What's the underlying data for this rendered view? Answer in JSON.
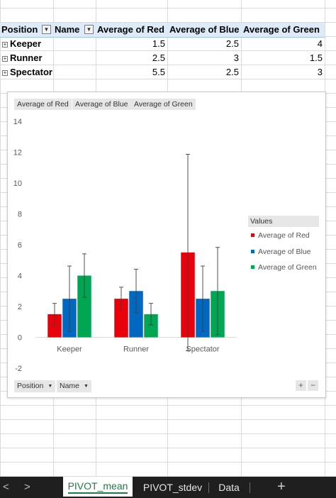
{
  "pivot": {
    "headers": {
      "position": "Position",
      "name": "Name",
      "red": "Average of Red",
      "blue": "Average of Blue",
      "green": "Average of Green"
    },
    "rows": [
      {
        "label": "Keeper",
        "red": "1.5",
        "blue": "2.5",
        "green": "4"
      },
      {
        "label": "Runner",
        "red": "2.5",
        "blue": "3",
        "green": "1.5"
      },
      {
        "label": "Spectator",
        "red": "5.5",
        "blue": "2.5",
        "green": "3"
      }
    ]
  },
  "chart": {
    "value_chips": [
      "Average of Red",
      "Average of Blue",
      "Average of Green"
    ],
    "legend_title": "Values",
    "axis_field_buttons": [
      "Position",
      "Name"
    ]
  },
  "chart_data": {
    "type": "bar",
    "categories": [
      "Keeper",
      "Runner",
      "Spectator"
    ],
    "series": [
      {
        "name": "Average of Red",
        "values": [
          1.5,
          2.5,
          5.5
        ],
        "error_plus": [
          0.7,
          0.75,
          6.36
        ],
        "error_minus": [
          0.7,
          0.75,
          6.36
        ],
        "color": "#e8000b"
      },
      {
        "name": "Average of Blue",
        "values": [
          2.5,
          3,
          2.5
        ],
        "error_plus": [
          2.12,
          1.41,
          2.12
        ],
        "error_minus": [
          2.12,
          1.41,
          2.12
        ],
        "color": "#0068c0"
      },
      {
        "name": "Average of Green",
        "values": [
          4,
          1.5,
          3
        ],
        "error_plus": [
          1.41,
          0.7,
          2.83
        ],
        "error_minus": [
          1.41,
          0.7,
          2.83
        ],
        "color": "#00a651"
      }
    ],
    "ylim": [
      -2,
      14
    ],
    "yticks": [
      -2,
      0,
      2,
      4,
      6,
      8,
      10,
      12,
      14
    ],
    "grid": false,
    "legend_position": "right",
    "xlabel": "",
    "ylabel": ""
  },
  "sheet_tabs": {
    "tabs": [
      "PIVOT_mean",
      "PIVOT_stdev",
      "Data"
    ],
    "active": "PIVOT_mean",
    "add_label": "+",
    "prev_label": "<",
    "next_label": ">"
  }
}
